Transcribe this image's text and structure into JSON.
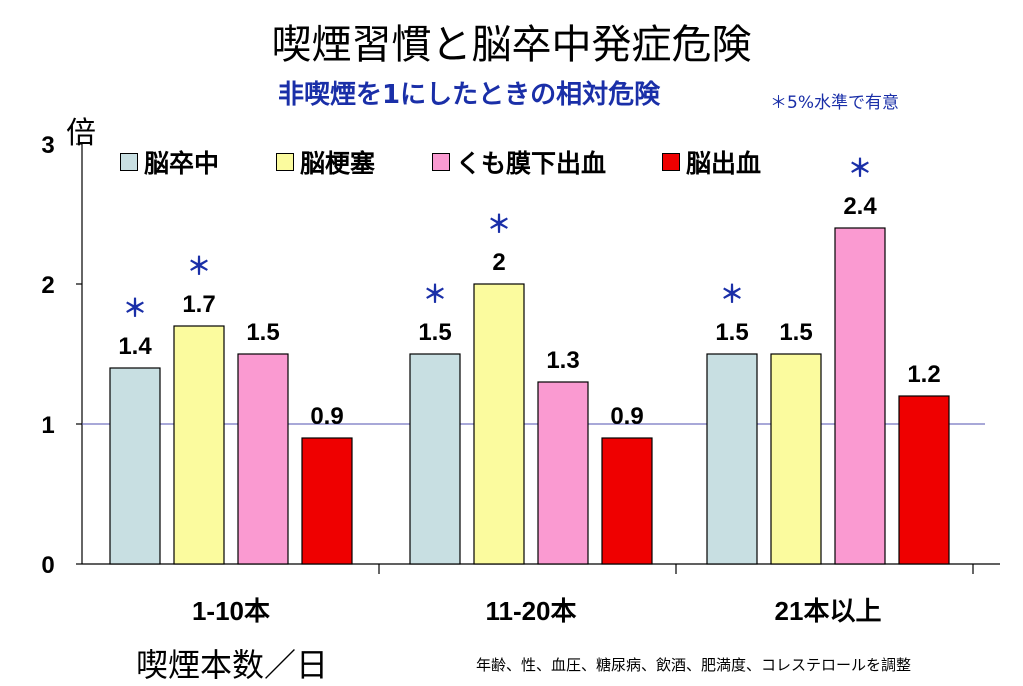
{
  "title": "喫煙習慣と脳卒中発症危険",
  "subtitle": "非喫煙を1にしたときの相対危険",
  "significance_note": "＊5%水準で有意",
  "unit_label": "倍",
  "x_axis_title": "喫煙本数／日",
  "footnote": "年齢、性、血圧、糖尿病、飲酒、肥満度、コレステロールを調整",
  "significance_mark": "＊",
  "colors": {
    "stroke": "#c8dfe2",
    "infarction": "#fbfb9e",
    "subarachnoid": "#fa9ad1",
    "hemorrhage": "#ef0000",
    "reference_line": "#5050b0",
    "significance": "#1a2fa8"
  },
  "legend": [
    {
      "label": "脳卒中",
      "color": "#c8dfe2"
    },
    {
      "label": "脳梗塞",
      "color": "#fbfb9e"
    },
    {
      "label": "くも膜下出血",
      "color": "#fa9ad1"
    },
    {
      "label": "脳出血",
      "color": "#ef0000"
    }
  ],
  "chart_data": {
    "type": "bar",
    "title": "喫煙習慣と脳卒中発症危険",
    "subtitle": "非喫煙を1にしたときの相対危険",
    "xlabel": "喫煙本数／日",
    "ylabel": "倍",
    "ylim": [
      0,
      3
    ],
    "yticks": [
      0,
      1,
      2,
      3
    ],
    "reference_value": 1,
    "grid": false,
    "legend_position": "top",
    "categories": [
      "1-10本",
      "11-20本",
      "21本以上"
    ],
    "series": [
      {
        "name": "脳卒中",
        "color": "#c8dfe2",
        "values": [
          1.4,
          1.5,
          1.5
        ],
        "labels": [
          "1.4",
          "1.5",
          "1.5"
        ],
        "significant": [
          true,
          true,
          true
        ]
      },
      {
        "name": "脳梗塞",
        "color": "#fbfb9e",
        "values": [
          1.7,
          2.0,
          1.5
        ],
        "labels": [
          "1.7",
          "2",
          "1.5"
        ],
        "significant": [
          true,
          true,
          false
        ]
      },
      {
        "name": "くも膜下出血",
        "color": "#fa9ad1",
        "values": [
          1.5,
          1.3,
          2.4
        ],
        "labels": [
          "1.5",
          "1.3",
          "2.4"
        ],
        "significant": [
          false,
          false,
          true
        ]
      },
      {
        "name": "脳出血",
        "color": "#ef0000",
        "values": [
          0.9,
          0.9,
          1.2
        ],
        "labels": [
          "0.9",
          "0.9",
          "1.2"
        ],
        "significant": [
          false,
          false,
          false
        ]
      }
    ]
  }
}
